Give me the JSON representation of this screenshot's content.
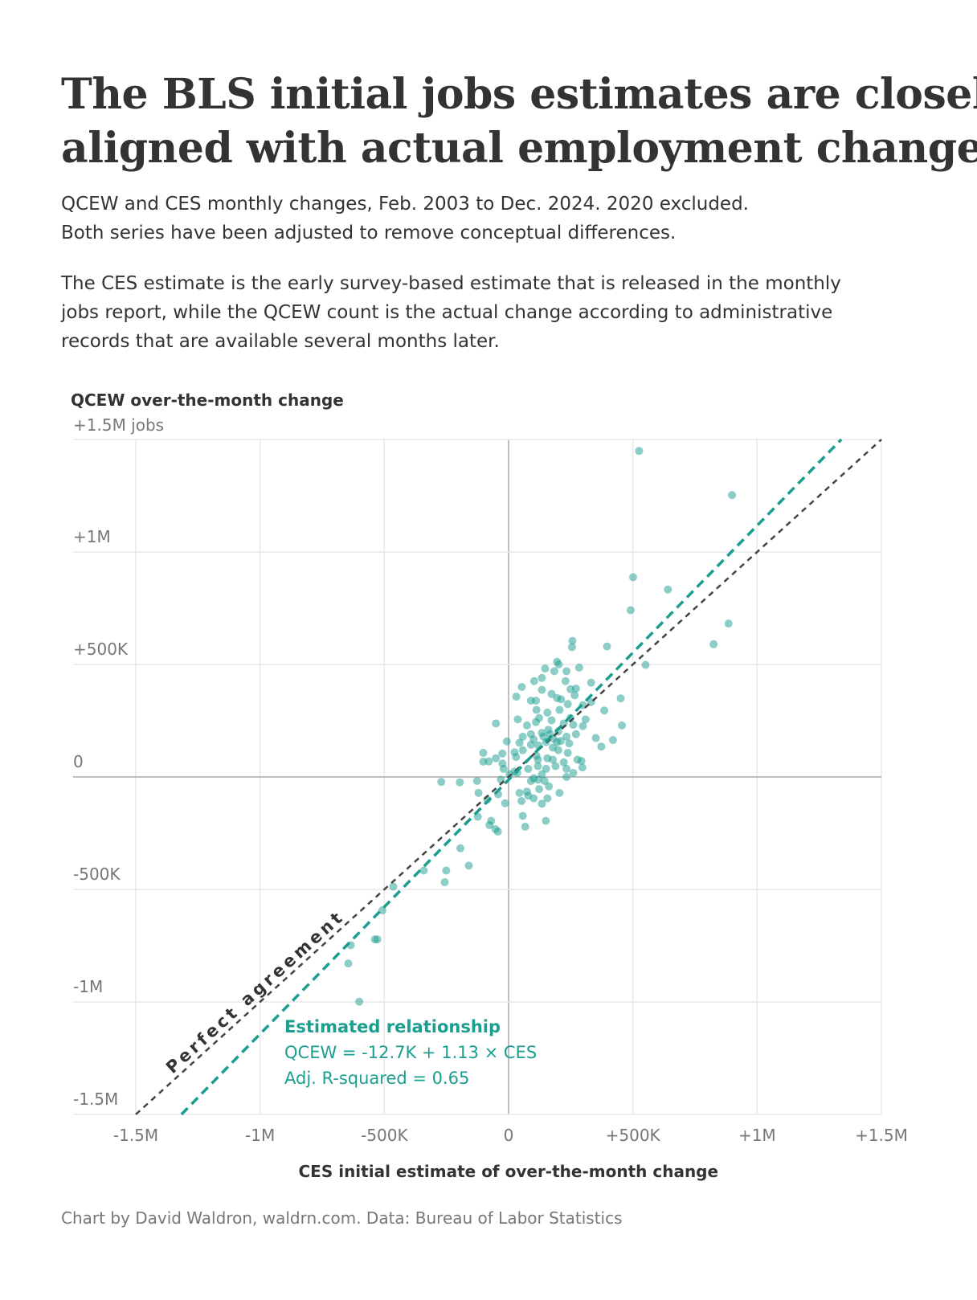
{
  "title": [
    "The BLS initial jobs estimates are closely",
    "aligned with actual employment changes"
  ],
  "subtitle": [
    "QCEW and CES monthly changes, Feb. 2003 to Dec. 2024. 2020 excluded.",
    "Both series have been adjusted to remove conceptual differences."
  ],
  "description": [
    "The CES estimate is the early survey-based estimate that is released in the monthly",
    "jobs report, while the QCEW count is the actual change according to administrative",
    "records that are available several months later."
  ],
  "footer": "Chart by David Waldron, waldrn.com. Data: Bureau of Labor Statistics",
  "colors": {
    "accent": "#1a9e8f",
    "reference": "#444444",
    "grid": "#e8e8e8",
    "axis": "#aaaaaa"
  },
  "chart_data": {
    "type": "scatter",
    "xlabel": "CES initial estimate of over-the-month change",
    "ylabel": "QCEW over-the-month change",
    "xlim": [
      -1500,
      1500
    ],
    "ylim": [
      -1500,
      1500
    ],
    "units": "thousands of jobs",
    "grid": true,
    "xticks": [
      -1500,
      -1000,
      -500,
      0,
      500,
      1000,
      1500
    ],
    "xtick_labels": [
      "-1.5M",
      "-1M",
      "-500K",
      "0",
      "+500K",
      "+1M",
      "+1.5M"
    ],
    "yticks": [
      1500,
      1000,
      500,
      0,
      -500,
      -1000,
      -1500
    ],
    "ytick_labels": [
      "+1.5M jobs",
      "+1M",
      "+500K",
      "0",
      "-500K",
      "-1M",
      "-1.5M"
    ],
    "reference_line": {
      "label": "Perfect agreement",
      "intercept": 0,
      "slope": 1
    },
    "regression_line": {
      "title": "Estimated relationship",
      "equation": "QCEW = -12.7K + 1.13 × CES",
      "r2_text": "Adj. R-squared = 0.65",
      "intercept": -12.7,
      "slope": 1.13
    },
    "points": [
      [
        525,
        1449
      ],
      [
        899,
        1253
      ],
      [
        501,
        888
      ],
      [
        641,
        833
      ],
      [
        491,
        741
      ],
      [
        885,
        682
      ],
      [
        825,
        590
      ],
      [
        551,
        498
      ],
      [
        -271,
        -22
      ],
      [
        -70,
        -195
      ],
      [
        -77,
        -214
      ],
      [
        -53,
        -232
      ],
      [
        -43,
        -243
      ],
      [
        57,
        -173
      ],
      [
        67,
        -221
      ],
      [
        150,
        -195
      ],
      [
        -124,
        -177
      ],
      [
        -194,
        -317
      ],
      [
        -160,
        -394
      ],
      [
        -251,
        -416
      ],
      [
        -257,
        -468
      ],
      [
        -341,
        -416
      ],
      [
        -464,
        -487
      ],
      [
        -508,
        -593
      ],
      [
        -538,
        -722
      ],
      [
        -528,
        -722
      ],
      [
        -635,
        -748
      ],
      [
        -645,
        -829
      ],
      [
        -601,
        -999
      ],
      [
        257,
        605
      ],
      [
        255,
        577
      ],
      [
        396,
        580
      ],
      [
        195,
        512
      ],
      [
        184,
        470
      ],
      [
        202,
        500
      ],
      [
        147,
        482
      ],
      [
        233,
        470
      ],
      [
        284,
        486
      ],
      [
        134,
        440
      ],
      [
        103,
        426
      ],
      [
        229,
        426
      ],
      [
        332,
        419
      ],
      [
        53,
        400
      ],
      [
        134,
        387
      ],
      [
        249,
        390
      ],
      [
        271,
        393
      ],
      [
        31,
        357
      ],
      [
        173,
        369
      ],
      [
        195,
        351
      ],
      [
        266,
        363
      ],
      [
        90,
        339
      ],
      [
        110,
        339
      ],
      [
        211,
        345
      ],
      [
        238,
        324
      ],
      [
        451,
        349
      ],
      [
        299,
        319
      ],
      [
        332,
        333
      ],
      [
        112,
        298
      ],
      [
        156,
        286
      ],
      [
        205,
        298
      ],
      [
        385,
        295
      ],
      [
        37,
        256
      ],
      [
        123,
        262
      ],
      [
        173,
        252
      ],
      [
        249,
        262
      ],
      [
        310,
        256
      ],
      [
        -51,
        238
      ],
      [
        110,
        244
      ],
      [
        74,
        229
      ],
      [
        222,
        238
      ],
      [
        260,
        232
      ],
      [
        299,
        226
      ],
      [
        456,
        229
      ],
      [
        90,
        190
      ],
      [
        134,
        196
      ],
      [
        167,
        190
      ],
      [
        200,
        202
      ],
      [
        233,
        179
      ],
      [
        271,
        190
      ],
      [
        57,
        179
      ],
      [
        -7,
        158
      ],
      [
        101,
        167
      ],
      [
        151,
        155
      ],
      [
        195,
        155
      ],
      [
        244,
        149
      ],
      [
        351,
        173
      ],
      [
        44,
        152
      ],
      [
        90,
        143
      ],
      [
        178,
        131
      ],
      [
        420,
        164
      ],
      [
        373,
        135
      ],
      [
        -102,
        107
      ],
      [
        -25,
        104
      ],
      [
        24,
        110
      ],
      [
        57,
        119
      ],
      [
        112,
        95
      ],
      [
        200,
        119
      ],
      [
        238,
        107
      ],
      [
        -102,
        68
      ],
      [
        -80,
        69
      ],
      [
        -51,
        83
      ],
      [
        -25,
        60
      ],
      [
        30,
        89
      ],
      [
        118,
        77
      ],
      [
        156,
        83
      ],
      [
        178,
        77
      ],
      [
        118,
        48
      ],
      [
        151,
        36
      ],
      [
        222,
        65
      ],
      [
        233,
        36
      ],
      [
        277,
        77
      ],
      [
        293,
        71
      ],
      [
        297,
        42
      ],
      [
        -20,
        36
      ],
      [
        24,
        24
      ],
      [
        79,
        36
      ],
      [
        189,
        48
      ],
      [
        260,
        18
      ],
      [
        233,
        0
      ],
      [
        4,
        12
      ],
      [
        35,
        18
      ],
      [
        134,
        12
      ],
      [
        101,
        -6
      ],
      [
        -196,
        -24
      ],
      [
        -127,
        -18
      ],
      [
        -31,
        -12
      ],
      [
        90,
        -18
      ],
      [
        118,
        -12
      ],
      [
        145,
        -18
      ],
      [
        162,
        -42
      ],
      [
        -121,
        -71
      ],
      [
        -42,
        -77
      ],
      [
        44,
        -71
      ],
      [
        74,
        -65
      ],
      [
        123,
        -54
      ],
      [
        205,
        -71
      ],
      [
        -86,
        -101
      ],
      [
        52,
        -107
      ],
      [
        79,
        -83
      ],
      [
        101,
        -95
      ],
      [
        156,
        -95
      ],
      [
        -14,
        -117
      ],
      [
        134,
        -119
      ],
      [
        140,
        180
      ],
      [
        160,
        210
      ],
      [
        180,
        170
      ],
      [
        120,
        140
      ],
      [
        210,
        160
      ]
    ]
  }
}
